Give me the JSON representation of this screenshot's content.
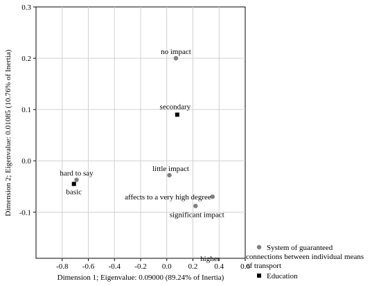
{
  "chart_data": {
    "type": "scatter",
    "xlabel": "Dimension 1; Eigenvalue: 0.09000 (89.24% of Inertia)",
    "ylabel": "Dimension 2; Eigenvalue: 0.01085 (10.76% of Inertia)",
    "xlim": [
      -1.0,
      0.6
    ],
    "ylim": [
      -0.19,
      0.3
    ],
    "x_ticks": [
      -0.8,
      -0.6,
      -0.4,
      -0.2,
      0.0,
      0.2,
      0.4,
      0.6
    ],
    "y_ticks": [
      -0.1,
      0.0,
      0.1,
      0.2,
      0.3
    ],
    "x_tick_labels": [
      "-0.8",
      "-0.6",
      "-0.4",
      "-0.2",
      "0.0",
      "0.2",
      "0.4",
      "0.6"
    ],
    "y_tick_labels": [
      "-0.1",
      "0.0",
      "0.1",
      "0.2",
      "0.3"
    ],
    "grid": true,
    "legend_placement": "bottom-right outside",
    "series": [
      {
        "name": "System of guaranteed connections between individual means of transport",
        "legend_lines": [
          "System of guaranteed",
          "connections between individual means",
          "of transport"
        ],
        "marker": "circle",
        "color": "#808080",
        "points": [
          {
            "label": "no impact",
            "x": 0.07,
            "y": 0.2
          },
          {
            "label": "little impact",
            "x": 0.02,
            "y": -0.028
          },
          {
            "label": "hard to say",
            "x": -0.69,
            "y": -0.037
          },
          {
            "label": "affects to a very high degree",
            "x": 0.35,
            "y": -0.07
          },
          {
            "label": "significant impact",
            "x": 0.22,
            "y": -0.088
          }
        ]
      },
      {
        "name": "Education",
        "legend_lines": [
          "Education"
        ],
        "marker": "square",
        "color": "#000000",
        "points": [
          {
            "label": "secondary",
            "x": 0.08,
            "y": 0.09
          },
          {
            "label": "basic",
            "x": -0.71,
            "y": -0.045
          },
          {
            "label": "higher",
            "x": 0.49,
            "y": -0.205
          }
        ]
      }
    ]
  }
}
